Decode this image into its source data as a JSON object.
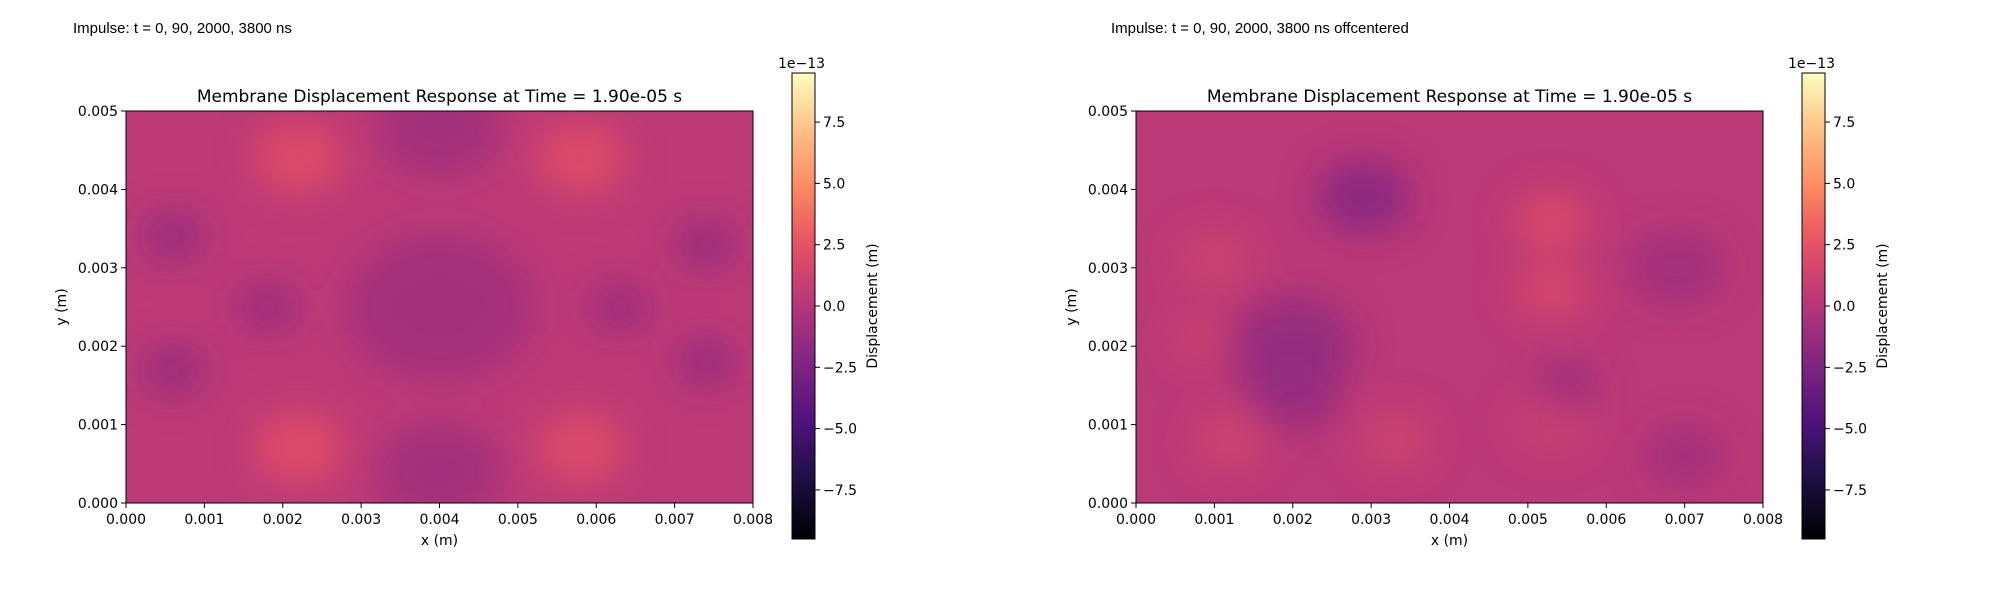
{
  "panels": [
    {
      "title": "Impulse: t = 0, 90, 2000, 3800 ns"
    },
    {
      "title": "Impulse: t = 0, 90, 2000, 3800 ns offcentered"
    }
  ],
  "colorbar": {
    "cmap": "magma",
    "label": "Displacement (m)",
    "exponent": "1e−13",
    "ticks": [
      "7.5",
      "5.0",
      "2.5",
      "0.0",
      "−2.5",
      "−5.0",
      "−7.5"
    ],
    "tick_values": [
      7.5,
      5.0,
      2.5,
      0.0,
      -2.5,
      -5.0,
      -7.5
    ],
    "range": [
      -9.5,
      9.5
    ]
  },
  "chart_data": [
    {
      "type": "heatmap",
      "title": "Membrane Displacement Response at Time = 1.90e-05 s",
      "xlabel": "x (m)",
      "ylabel": "y (m)",
      "xlim": [
        0.0,
        0.008
      ],
      "ylim": [
        0.0,
        0.005
      ],
      "xticks": [
        "0.000",
        "0.001",
        "0.002",
        "0.003",
        "0.004",
        "0.005",
        "0.006",
        "0.007",
        "0.008"
      ],
      "xtick_values": [
        0.0,
        0.001,
        0.002,
        0.003,
        0.004,
        0.005,
        0.006,
        0.007,
        0.008
      ],
      "yticks": [
        "0.000",
        "0.001",
        "0.002",
        "0.003",
        "0.004",
        "0.005"
      ],
      "ytick_values": [
        0.0,
        0.001,
        0.002,
        0.003,
        0.004,
        0.005
      ],
      "base_value": 0.4,
      "features": [
        {
          "x": 0.0022,
          "y": 0.0044,
          "value": 2.2,
          "radius": 0.0006
        },
        {
          "x": 0.0058,
          "y": 0.0044,
          "value": 2.2,
          "radius": 0.0006
        },
        {
          "x": 0.0022,
          "y": 0.0007,
          "value": 2.3,
          "radius": 0.0006
        },
        {
          "x": 0.0058,
          "y": 0.0007,
          "value": 2.1,
          "radius": 0.0006
        },
        {
          "x": 0.004,
          "y": 0.0048,
          "value": -1.0,
          "radius": 0.0008
        },
        {
          "x": 0.004,
          "y": 0.0004,
          "value": -1.0,
          "radius": 0.0008
        },
        {
          "x": 0.004,
          "y": 0.0025,
          "value": -0.9,
          "radius": 0.0012
        },
        {
          "x": 0.0018,
          "y": 0.0025,
          "value": -1.4,
          "radius": 0.0004
        },
        {
          "x": 0.0063,
          "y": 0.0025,
          "value": -1.3,
          "radius": 0.0004
        },
        {
          "x": 0.0006,
          "y": 0.0034,
          "value": -1.6,
          "radius": 0.0004
        },
        {
          "x": 0.0006,
          "y": 0.0017,
          "value": -1.6,
          "radius": 0.0004
        },
        {
          "x": 0.0074,
          "y": 0.0033,
          "value": -1.6,
          "radius": 0.0004
        },
        {
          "x": 0.0074,
          "y": 0.0018,
          "value": -1.5,
          "radius": 0.0004
        }
      ]
    },
    {
      "type": "heatmap",
      "title": "Membrane Displacement Response at Time = 1.90e-05 s",
      "xlabel": "x (m)",
      "ylabel": "y (m)",
      "xlim": [
        0.0,
        0.008
      ],
      "ylim": [
        0.0,
        0.005
      ],
      "xticks": [
        "0.000",
        "0.001",
        "0.002",
        "0.003",
        "0.004",
        "0.005",
        "0.006",
        "0.007",
        "0.008"
      ],
      "xtick_values": [
        0.0,
        0.001,
        0.002,
        0.003,
        0.004,
        0.005,
        0.006,
        0.007,
        0.008
      ],
      "yticks": [
        "0.000",
        "0.001",
        "0.002",
        "0.003",
        "0.004",
        "0.005"
      ],
      "ytick_values": [
        0.0,
        0.001,
        0.002,
        0.003,
        0.004,
        0.005
      ],
      "base_value": 0.3,
      "features": [
        {
          "x": 0.0029,
          "y": 0.0039,
          "value": -2.2,
          "radius": 0.0006
        },
        {
          "x": 0.002,
          "y": 0.002,
          "value": -1.7,
          "radius": 0.0008
        },
        {
          "x": 0.002,
          "y": 0.0014,
          "value": -1.5,
          "radius": 0.0006
        },
        {
          "x": 0.0053,
          "y": 0.0036,
          "value": 2.0,
          "radius": 0.0005
        },
        {
          "x": 0.0053,
          "y": 0.0027,
          "value": 1.8,
          "radius": 0.0005
        },
        {
          "x": 0.001,
          "y": 0.0031,
          "value": 1.3,
          "radius": 0.0005
        },
        {
          "x": 0.0008,
          "y": 0.0021,
          "value": 1.2,
          "radius": 0.0004
        },
        {
          "x": 0.0012,
          "y": 0.0008,
          "value": 1.4,
          "radius": 0.0005
        },
        {
          "x": 0.0033,
          "y": 0.0008,
          "value": 1.3,
          "radius": 0.0005
        },
        {
          "x": 0.0053,
          "y": 0.001,
          "value": 1.1,
          "radius": 0.0005
        },
        {
          "x": 0.0055,
          "y": 0.0015,
          "value": -1.1,
          "radius": 0.0004
        },
        {
          "x": 0.0069,
          "y": 0.003,
          "value": -1.0,
          "radius": 0.0006
        },
        {
          "x": 0.007,
          "y": 0.0006,
          "value": -0.9,
          "radius": 0.0005
        }
      ]
    }
  ]
}
